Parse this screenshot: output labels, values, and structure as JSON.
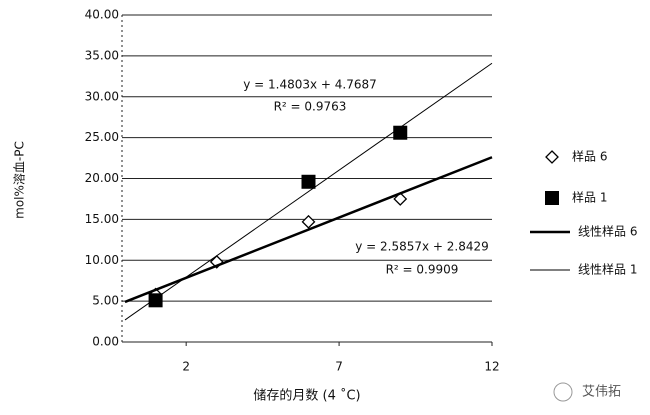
{
  "chart_data": {
    "type": "scatter",
    "x_label": "储存的月数 (4 ˚C)",
    "y_label": "mol%溶血-PC",
    "xlim": [
      0,
      12
    ],
    "xticks": [
      2,
      7,
      12
    ],
    "ylim": [
      0,
      40
    ],
    "yticks": [
      {
        "value": 0,
        "label": "0.00"
      },
      {
        "value": 5,
        "label": "5.00"
      },
      {
        "value": 10,
        "label": "10.00"
      },
      {
        "value": 15,
        "label": "15.00"
      },
      {
        "value": 20,
        "label": "20.00"
      },
      {
        "value": 25,
        "label": "25.00"
      },
      {
        "value": 30,
        "label": "30.00"
      },
      {
        "value": 35,
        "label": "35.00"
      },
      {
        "value": 40,
        "label": "40.00"
      }
    ],
    "grid": true,
    "series": [
      {
        "name": "样品 6",
        "color": "#000000",
        "marker": "diamond",
        "x": [
          1,
          3,
          6,
          9
        ],
        "values": [
          5.8,
          9.8,
          14.7,
          17.5
        ]
      },
      {
        "name": "样品 1",
        "color": "#000000",
        "marker": "square",
        "x": [
          1,
          6,
          9
        ],
        "values": [
          5.1,
          19.6,
          25.6
        ]
      },
      {
        "name": "线性样品 6",
        "color": "#000000",
        "marker": "line",
        "line_width": 2.5,
        "x": [
          0,
          12
        ],
        "values": [
          4.9,
          22.6
        ]
      },
      {
        "name": "线性样品 1",
        "color": "#000000",
        "marker": "line",
        "line_width": 1,
        "x": [
          0,
          12
        ],
        "values": [
          2.7,
          34.1
        ]
      }
    ],
    "annotations": [
      "y = 1.4803x + 4.7687",
      "R² = 0.9763",
      "y = 2.5857x + 2.8429",
      "R² = 0.9909"
    ],
    "watermark": "艾伟拓"
  }
}
